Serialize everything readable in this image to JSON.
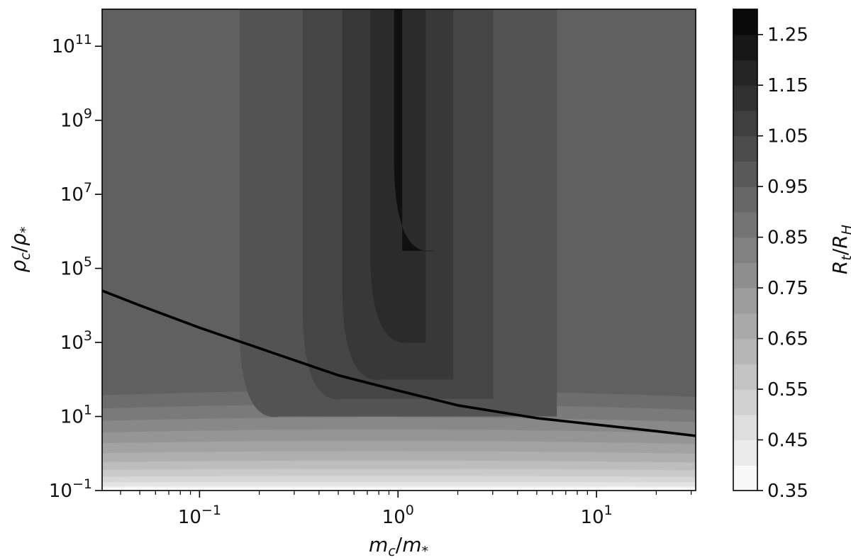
{
  "chart_data": {
    "type": "heatmap",
    "subtype": "filled-contour",
    "title": "",
    "xlabel": {
      "base": "m",
      "sub": "c",
      "sep": "/",
      "base2": "m",
      "sub2": "*"
    },
    "ylabel": {
      "base": "ρ",
      "sub": "c",
      "sep": "/",
      "base2": "ρ",
      "sub2": "*"
    },
    "colorbar_label": {
      "base": "R",
      "sub": "t",
      "sep": "/",
      "base2": "R",
      "sub2": "H"
    },
    "x_scale": "log",
    "y_scale": "log",
    "xlim": [
      0.0323,
      31.6
    ],
    "ylim": [
      0.1,
      1000000000000.0
    ],
    "x_ticks": [
      {
        "value": 0.1,
        "base": "10",
        "exp": "−1"
      },
      {
        "value": 1,
        "base": "10",
        "exp": "0"
      },
      {
        "value": 10,
        "base": "10",
        "exp": "1"
      }
    ],
    "y_ticks": [
      {
        "value": 0.1,
        "base": "10",
        "exp": "−1"
      },
      {
        "value": 10,
        "base": "10",
        "exp": "1"
      },
      {
        "value": 1000,
        "base": "10",
        "exp": "3"
      },
      {
        "value": 100000,
        "base": "10",
        "exp": "5"
      },
      {
        "value": 10000000,
        "base": "10",
        "exp": "7"
      },
      {
        "value": 1000000000,
        "base": "10",
        "exp": "9"
      },
      {
        "value": 100000000000,
        "base": "10",
        "exp": "11"
      }
    ],
    "colorbar": {
      "range": [
        0.35,
        1.3
      ],
      "step": 0.05,
      "tick_labels": [
        "0.35",
        "0.45",
        "0.55",
        "0.65",
        "0.75",
        "0.85",
        "0.95",
        "1.05",
        "1.15",
        "1.25"
      ],
      "colormap": "Greys"
    },
    "vertical_bands": [
      {
        "x_left": 0.159,
        "x_right": 6.31,
        "y_bottom": 10,
        "level": 1.0
      },
      {
        "x_left": 0.331,
        "x_right": 3.02,
        "y_bottom": 30,
        "level": 1.05
      },
      {
        "x_left": 0.525,
        "x_right": 1.9,
        "y_bottom": 100,
        "level": 1.1
      },
      {
        "x_left": 0.724,
        "x_right": 1.38,
        "y_bottom": 1000,
        "level": 1.15
      },
      {
        "x_left": 0.955,
        "x_right": 1.05,
        "y_bottom": 300000,
        "level": 1.25
      }
    ],
    "background_level": 0.95,
    "boundary_curve": {
      "name": "",
      "color": "#000000",
      "x": [
        0.0323,
        0.05,
        0.1,
        0.2,
        0.5,
        1,
        2,
        5,
        10,
        20,
        31.6
      ],
      "y": [
        25000,
        10000,
        2500,
        700,
        130,
        50,
        20,
        9,
        6,
        4,
        3
      ]
    }
  }
}
